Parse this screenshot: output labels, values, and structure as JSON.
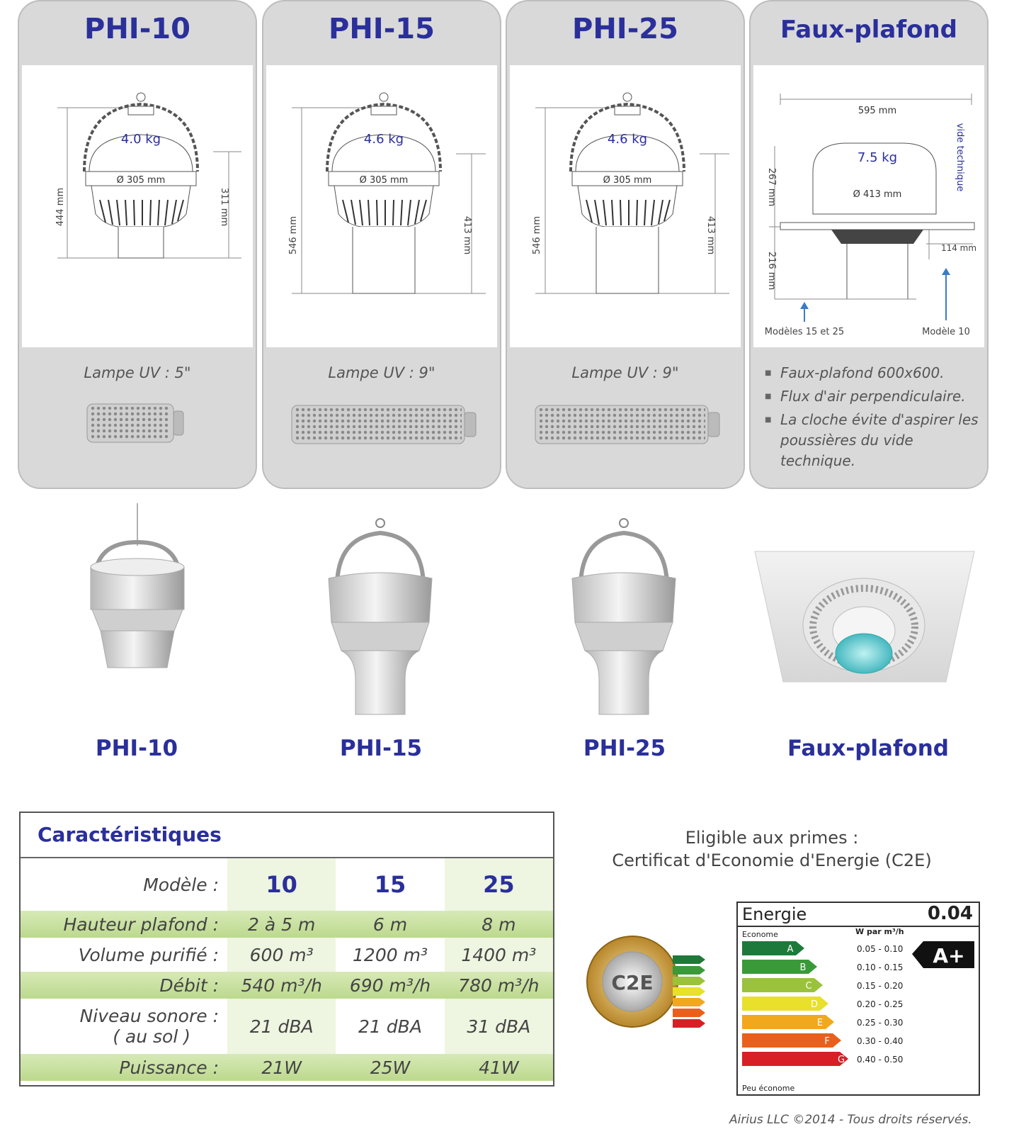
{
  "cards": [
    {
      "title": "PHI-10",
      "weight": "4.0 kg",
      "diameter": "Ø 305 mm",
      "height_total": "444 mm",
      "height_body": "311 mm",
      "lamp_label": "Lampe UV : 5\""
    },
    {
      "title": "PHI-15",
      "weight": "4.6 kg",
      "diameter": "Ø 305 mm",
      "height_total": "546 mm",
      "height_body": "413 mm",
      "lamp_label": "Lampe UV : 9\""
    },
    {
      "title": "PHI-25",
      "weight": "4.6 kg",
      "diameter": "Ø 305 mm",
      "height_total": "546 mm",
      "height_body": "413 mm",
      "lamp_label": "Lampe UV : 9\""
    },
    {
      "title": "Faux-plafond",
      "width": "595 mm",
      "weight": "7.5 kg",
      "diameter": "Ø 413 mm",
      "height_top": "267 mm",
      "height_bottom": "216 mm",
      "height_side": "114 mm",
      "vide": "vide technique",
      "label_left": "Modèles 15 et 25",
      "label_right": "Modèle 10",
      "notes": [
        "Faux-plafond 600x600.",
        "Flux d'air perpendiculaire.",
        "La cloche évite d'aspirer les poussières du vide technique."
      ]
    }
  ],
  "products": [
    "PHI-10",
    "PHI-15",
    "PHI-25",
    "Faux-plafond"
  ],
  "specs": {
    "title": "Caractéristiques",
    "model_label": "Modèle :",
    "models": [
      "10",
      "15",
      "25"
    ],
    "rows": [
      {
        "label": "Hauteur plafond :",
        "values": [
          "2 à 5 m",
          "6 m",
          "8 m"
        ]
      },
      {
        "label": "Volume purifié :",
        "values": [
          "600 m³",
          "1200 m³",
          "1400 m³"
        ]
      },
      {
        "label": "Débit :",
        "values": [
          "540 m³/h",
          "690 m³/h",
          "780 m³/h"
        ]
      },
      {
        "label": "Niveau sonore :",
        "sublabel": "( au sol )",
        "values": [
          "21 dBA",
          "21 dBA",
          "31 dBA"
        ]
      },
      {
        "label": "Puissance :",
        "values": [
          "21W",
          "25W",
          "41W"
        ]
      }
    ]
  },
  "eligibility": {
    "line1": "Eligible aux primes :",
    "line2": "Certificat d'Economie d'Energie (C2E)"
  },
  "badge": {
    "text": "C2E"
  },
  "energy": {
    "title": "Energie",
    "value": "0.04",
    "top_left": "Econome",
    "unit": "W par m³/h",
    "bottom_left": "Peu économe",
    "rating": "A+",
    "classes": [
      {
        "letter": "A",
        "range": "0.05 - 0.10",
        "color": "#1e7a3a"
      },
      {
        "letter": "B",
        "range": "0.10 - 0.15",
        "color": "#3a9a3a"
      },
      {
        "letter": "C",
        "range": "0.15 - 0.20",
        "color": "#9ac23c"
      },
      {
        "letter": "D",
        "range": "0.20 - 0.25",
        "color": "#e8e02a"
      },
      {
        "letter": "E",
        "range": "0.25 - 0.30",
        "color": "#f2a81d"
      },
      {
        "letter": "F",
        "range": "0.30 - 0.40",
        "color": "#e8601c"
      },
      {
        "letter": "G",
        "range": "0.40 - 0.50",
        "color": "#d81f26"
      }
    ]
  },
  "copyright": "Airius LLC ©2014 - Tous droits réservés."
}
